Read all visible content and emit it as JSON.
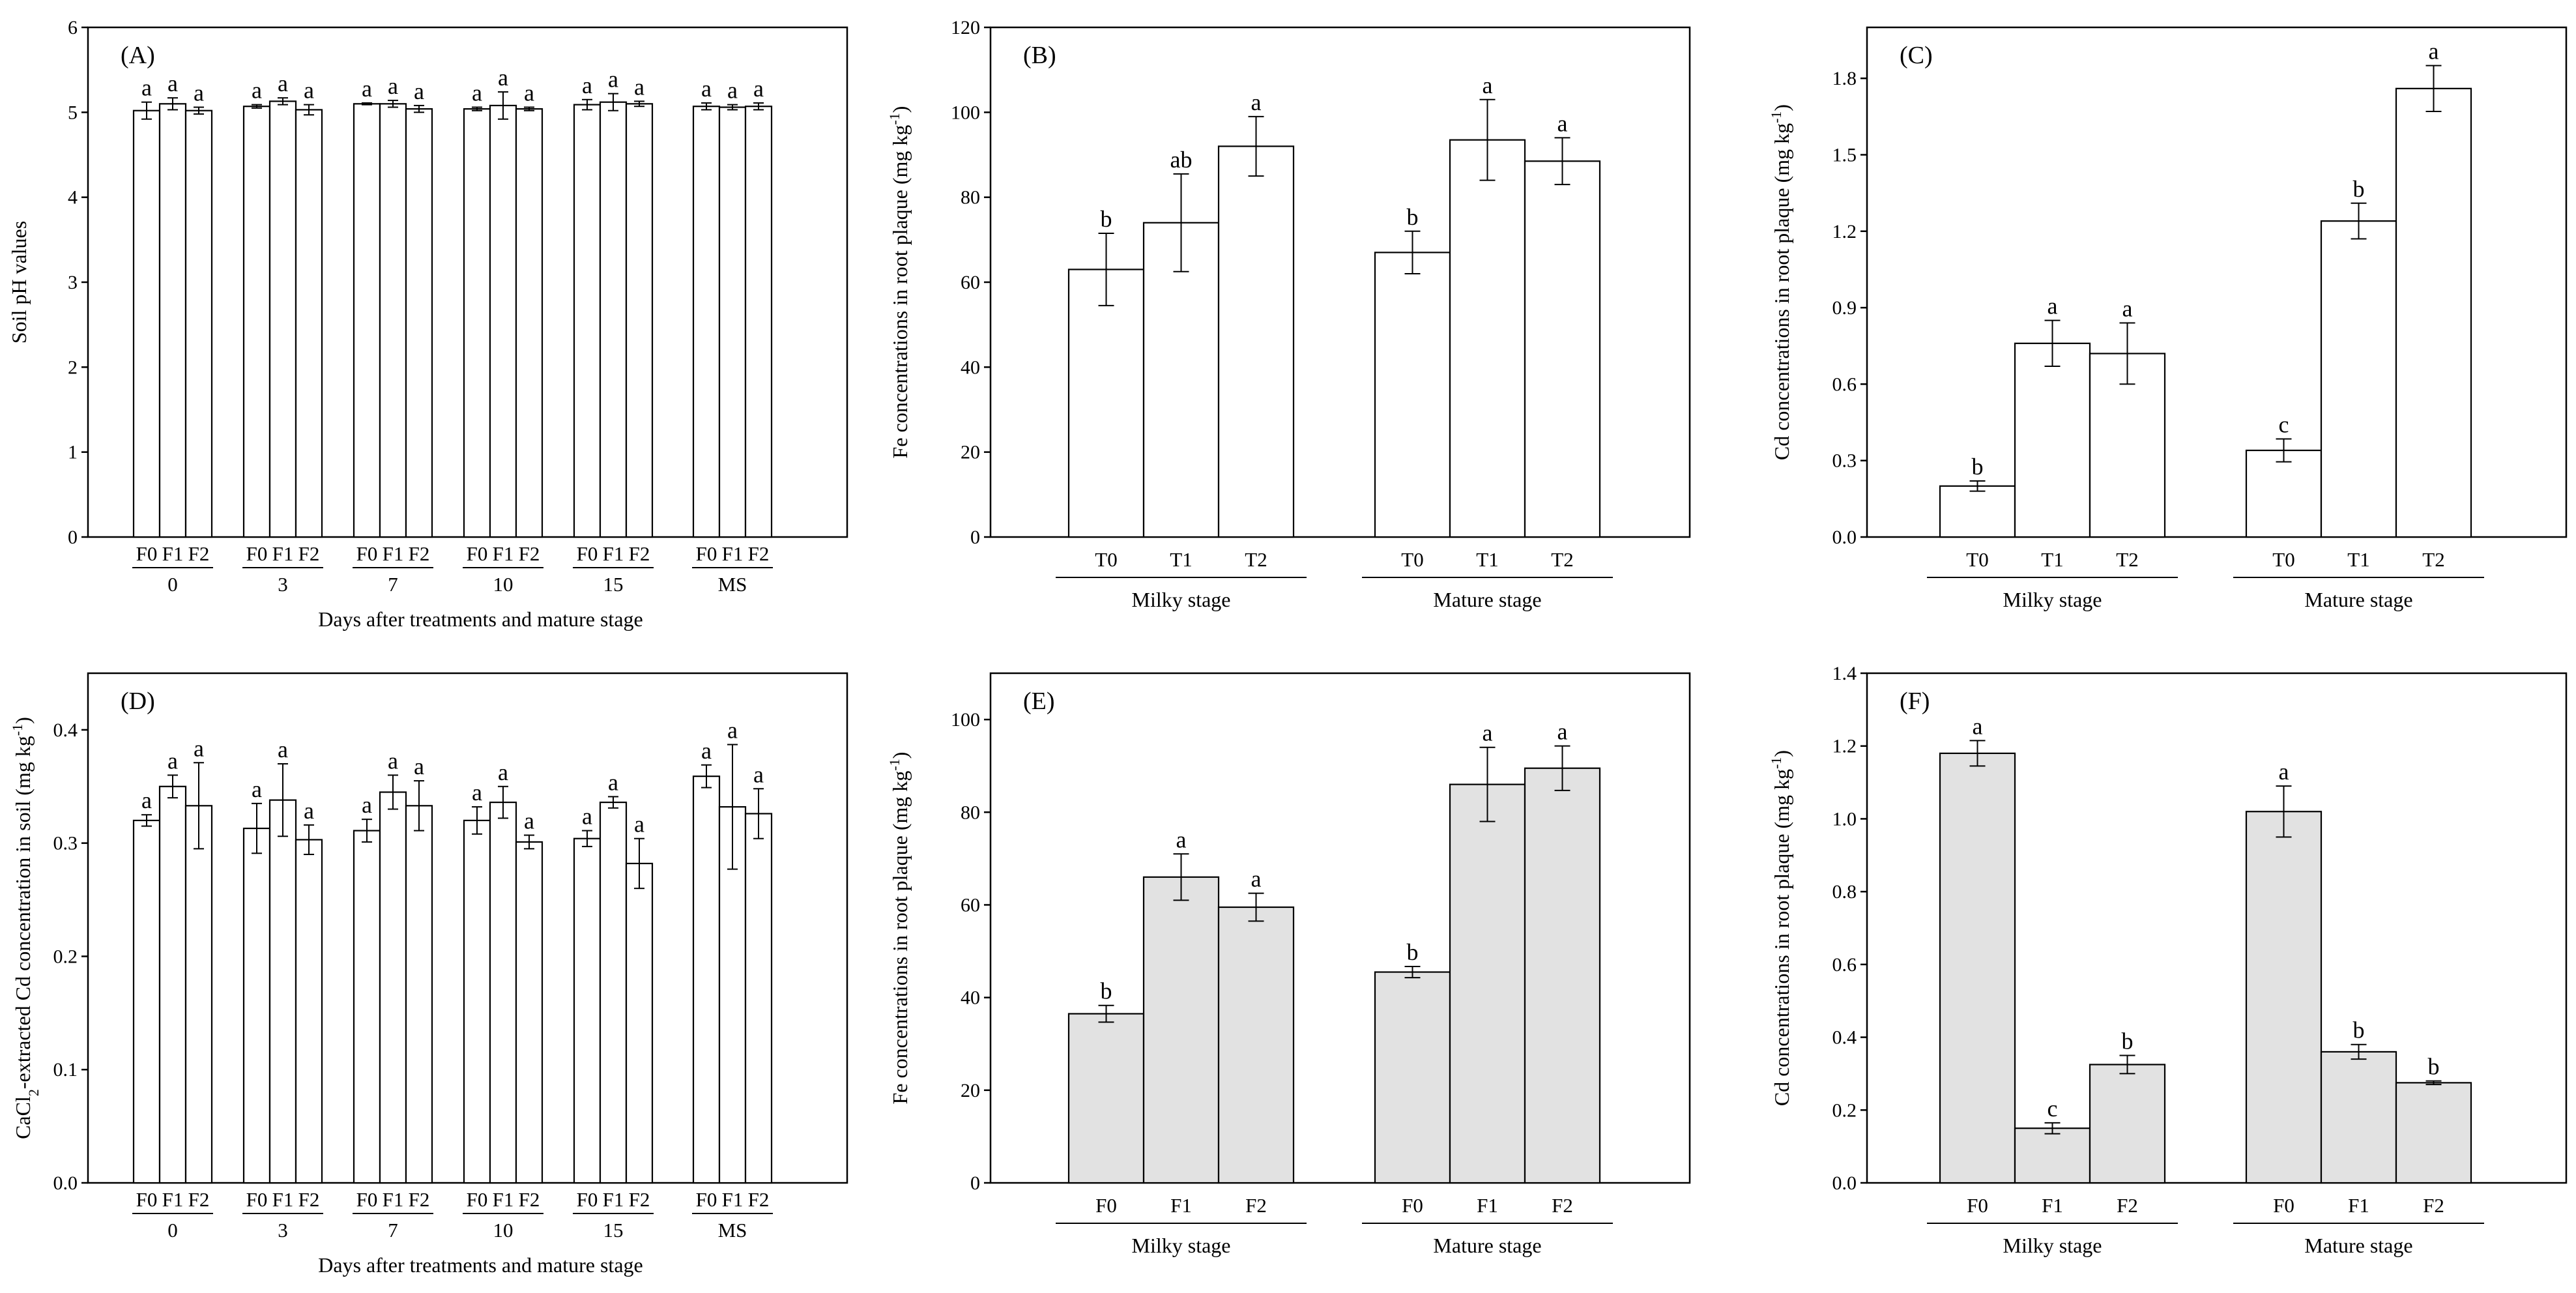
{
  "chart_data": [
    {
      "id": "A",
      "type": "bar",
      "panel_label": "(A)",
      "ylabel": "Soil pH values",
      "xlabel": "Days after treatments and mature stage",
      "ylim": [
        0,
        6
      ],
      "yticks": [
        "0",
        "1",
        "2",
        "3",
        "4",
        "5",
        "6"
      ],
      "yticks_values": [
        0,
        1,
        2,
        3,
        4,
        5,
        6
      ],
      "bar_fill": "#ffffff",
      "groups": [
        {
          "label": "0",
          "bars": [
            {
              "label": "F0",
              "value": 5.02,
              "error": 0.1,
              "letter": "a"
            },
            {
              "label": "F1",
              "value": 5.1,
              "error": 0.07,
              "letter": "a"
            },
            {
              "label": "F2",
              "value": 5.02,
              "error": 0.04,
              "letter": "a"
            }
          ]
        },
        {
          "label": "3",
          "bars": [
            {
              "label": "F0",
              "value": 5.07,
              "error": 0.02,
              "letter": "a"
            },
            {
              "label": "F1",
              "value": 5.13,
              "error": 0.04,
              "letter": "a"
            },
            {
              "label": "F2",
              "value": 5.03,
              "error": 0.06,
              "letter": "a"
            }
          ]
        },
        {
          "label": "7",
          "bars": [
            {
              "label": "F0",
              "value": 5.1,
              "error": 0.01,
              "letter": "a"
            },
            {
              "label": "F1",
              "value": 5.1,
              "error": 0.04,
              "letter": "a"
            },
            {
              "label": "F2",
              "value": 5.04,
              "error": 0.04,
              "letter": "a"
            }
          ]
        },
        {
          "label": "10",
          "bars": [
            {
              "label": "F0",
              "value": 5.04,
              "error": 0.02,
              "letter": "a"
            },
            {
              "label": "F1",
              "value": 5.08,
              "error": 0.16,
              "letter": "a"
            },
            {
              "label": "F2",
              "value": 5.04,
              "error": 0.02,
              "letter": "a"
            }
          ]
        },
        {
          "label": "15",
          "bars": [
            {
              "label": "F0",
              "value": 5.09,
              "error": 0.06,
              "letter": "a"
            },
            {
              "label": "F1",
              "value": 5.12,
              "error": 0.1,
              "letter": "a"
            },
            {
              "label": "F2",
              "value": 5.1,
              "error": 0.03,
              "letter": "a"
            }
          ]
        },
        {
          "label": "MS",
          "bars": [
            {
              "label": "F0",
              "value": 5.07,
              "error": 0.04,
              "letter": "a"
            },
            {
              "label": "F1",
              "value": 5.06,
              "error": 0.03,
              "letter": "a"
            },
            {
              "label": "F2",
              "value": 5.07,
              "error": 0.04,
              "letter": "a"
            }
          ]
        }
      ]
    },
    {
      "id": "B",
      "type": "bar",
      "panel_label": "(B)",
      "ylabel": "Fe concentrations in root plaque (mg kg",
      "ylabel_sup": "-1",
      "ylabel_close": ")",
      "ylim": [
        0,
        120
      ],
      "yticks": [
        "0",
        "20",
        "40",
        "60",
        "80",
        "100",
        "120"
      ],
      "yticks_values": [
        0,
        20,
        40,
        60,
        80,
        100,
        120
      ],
      "bar_fill": "#ffffff",
      "groups": [
        {
          "label": "Milky stage",
          "bars": [
            {
              "label": "T0",
              "value": 63,
              "error": 8.5,
              "letter": "b"
            },
            {
              "label": "T1",
              "value": 74,
              "error": 11.5,
              "letter": "ab"
            },
            {
              "label": "T2",
              "value": 92,
              "error": 7,
              "letter": "a"
            }
          ]
        },
        {
          "label": "Mature stage",
          "bars": [
            {
              "label": "T0",
              "value": 67,
              "error": 5,
              "letter": "b"
            },
            {
              "label": "T1",
              "value": 93.5,
              "error": 9.5,
              "letter": "a"
            },
            {
              "label": "T2",
              "value": 88.5,
              "error": 5.5,
              "letter": "a"
            }
          ]
        }
      ]
    },
    {
      "id": "C",
      "type": "bar",
      "panel_label": "(C)",
      "ylabel": "Cd concentrations in root plaque (mg kg",
      "ylabel_sup": "-1",
      "ylabel_close": ")",
      "ylim": [
        0,
        2.0
      ],
      "yticks": [
        "0.0",
        "0.3",
        "0.6",
        "0.9",
        "1.2",
        "1.5",
        "1.8"
      ],
      "yticks_values": [
        0,
        0.3,
        0.6,
        0.9,
        1.2,
        1.5,
        1.8
      ],
      "bar_fill": "#ffffff",
      "groups": [
        {
          "label": "Milky stage",
          "bars": [
            {
              "label": "T0",
              "value": 0.2,
              "error": 0.02,
              "letter": "b"
            },
            {
              "label": "T1",
              "value": 0.76,
              "error": 0.09,
              "letter": "a"
            },
            {
              "label": "T2",
              "value": 0.72,
              "error": 0.12,
              "letter": "a"
            }
          ]
        },
        {
          "label": "Mature stage",
          "bars": [
            {
              "label": "T0",
              "value": 0.34,
              "error": 0.045,
              "letter": "c"
            },
            {
              "label": "T1",
              "value": 1.24,
              "error": 0.07,
              "letter": "b"
            },
            {
              "label": "T2",
              "value": 1.76,
              "error": 0.09,
              "letter": "a"
            }
          ]
        }
      ]
    },
    {
      "id": "D",
      "type": "bar",
      "panel_label": "(D)",
      "ylabel": "CaCl",
      "ylabel_sub": "2",
      "ylabel_rest": "-extracted Cd concentration in soil (mg kg",
      "ylabel_sup": "-1",
      "ylabel_close": ")",
      "xlabel": "Days after treatments and mature stage",
      "ylim": [
        0,
        0.45
      ],
      "yticks": [
        "0.0",
        "0.1",
        "0.2",
        "0.3",
        "0.4"
      ],
      "yticks_values": [
        0,
        0.1,
        0.2,
        0.3,
        0.4
      ],
      "bar_fill": "#ffffff",
      "groups": [
        {
          "label": "0",
          "bars": [
            {
              "label": "F0",
              "value": 0.32,
              "error": 0.005,
              "letter": "a"
            },
            {
              "label": "F1",
              "value": 0.35,
              "error": 0.01,
              "letter": "a"
            },
            {
              "label": "F2",
              "value": 0.333,
              "error": 0.038,
              "letter": "a"
            }
          ]
        },
        {
          "label": "3",
          "bars": [
            {
              "label": "F0",
              "value": 0.313,
              "error": 0.022,
              "letter": "a"
            },
            {
              "label": "F1",
              "value": 0.338,
              "error": 0.032,
              "letter": "a"
            },
            {
              "label": "F2",
              "value": 0.303,
              "error": 0.013,
              "letter": "a"
            }
          ]
        },
        {
          "label": "7",
          "bars": [
            {
              "label": "F0",
              "value": 0.311,
              "error": 0.01,
              "letter": "a"
            },
            {
              "label": "F1",
              "value": 0.345,
              "error": 0.015,
              "letter": "a"
            },
            {
              "label": "F2",
              "value": 0.333,
              "error": 0.022,
              "letter": "a"
            }
          ]
        },
        {
          "label": "10",
          "bars": [
            {
              "label": "F0",
              "value": 0.32,
              "error": 0.012,
              "letter": "a"
            },
            {
              "label": "F1",
              "value": 0.336,
              "error": 0.014,
              "letter": "a"
            },
            {
              "label": "F2",
              "value": 0.301,
              "error": 0.006,
              "letter": "a"
            }
          ]
        },
        {
          "label": "15",
          "bars": [
            {
              "label": "F0",
              "value": 0.304,
              "error": 0.007,
              "letter": "a"
            },
            {
              "label": "F1",
              "value": 0.336,
              "error": 0.005,
              "letter": "a"
            },
            {
              "label": "F2",
              "value": 0.282,
              "error": 0.022,
              "letter": "a"
            }
          ]
        },
        {
          "label": "MS",
          "bars": [
            {
              "label": "F0",
              "value": 0.359,
              "error": 0.01,
              "letter": "a"
            },
            {
              "label": "F1",
              "value": 0.332,
              "error": 0.055,
              "letter": "a"
            },
            {
              "label": "F2",
              "value": 0.326,
              "error": 0.022,
              "letter": "a"
            }
          ]
        }
      ]
    },
    {
      "id": "E",
      "type": "bar",
      "panel_label": "(E)",
      "ylabel": "Fe concentrations in root plaque (mg kg",
      "ylabel_sup": "-1",
      "ylabel_close": ")",
      "ylim": [
        0,
        110
      ],
      "yticks": [
        "0",
        "20",
        "40",
        "60",
        "80",
        "100"
      ],
      "yticks_values": [
        0,
        20,
        40,
        60,
        80,
        100
      ],
      "bar_fill": "#e2e2e2",
      "groups": [
        {
          "label": "Milky stage",
          "bars": [
            {
              "label": "F0",
              "value": 36.5,
              "error": 1.8,
              "letter": "b"
            },
            {
              "label": "F1",
              "value": 66,
              "error": 5,
              "letter": "a"
            },
            {
              "label": "F2",
              "value": 59.5,
              "error": 3,
              "letter": "a"
            }
          ]
        },
        {
          "label": "Mature stage",
          "bars": [
            {
              "label": "F0",
              "value": 45.5,
              "error": 1.2,
              "letter": "b"
            },
            {
              "label": "F1",
              "value": 86,
              "error": 8,
              "letter": "a"
            },
            {
              "label": "F2",
              "value": 89.5,
              "error": 4.8,
              "letter": "a"
            }
          ]
        }
      ]
    },
    {
      "id": "F",
      "type": "bar",
      "panel_label": "(F)",
      "ylabel": "Cd concentrations in root plaque (mg kg",
      "ylabel_sup": "-1",
      "ylabel_close": ")",
      "ylim": [
        0,
        1.4
      ],
      "yticks": [
        "0.0",
        "0.2",
        "0.4",
        "0.6",
        "0.8",
        "1.0",
        "1.2",
        "1.4"
      ],
      "yticks_values": [
        0,
        0.2,
        0.4,
        0.6,
        0.8,
        1.0,
        1.2,
        1.4
      ],
      "bar_fill": "#e2e2e2",
      "groups": [
        {
          "label": "Milky stage",
          "bars": [
            {
              "label": "F0",
              "value": 1.18,
              "error": 0.035,
              "letter": "a"
            },
            {
              "label": "F1",
              "value": 0.15,
              "error": 0.015,
              "letter": "c"
            },
            {
              "label": "F2",
              "value": 0.325,
              "error": 0.025,
              "letter": "b"
            }
          ]
        },
        {
          "label": "Mature stage",
          "bars": [
            {
              "label": "F0",
              "value": 1.02,
              "error": 0.07,
              "letter": "a"
            },
            {
              "label": "F1",
              "value": 0.36,
              "error": 0.02,
              "letter": "b"
            },
            {
              "label": "F2",
              "value": 0.275,
              "error": 0.005,
              "letter": "b"
            }
          ]
        }
      ]
    }
  ]
}
